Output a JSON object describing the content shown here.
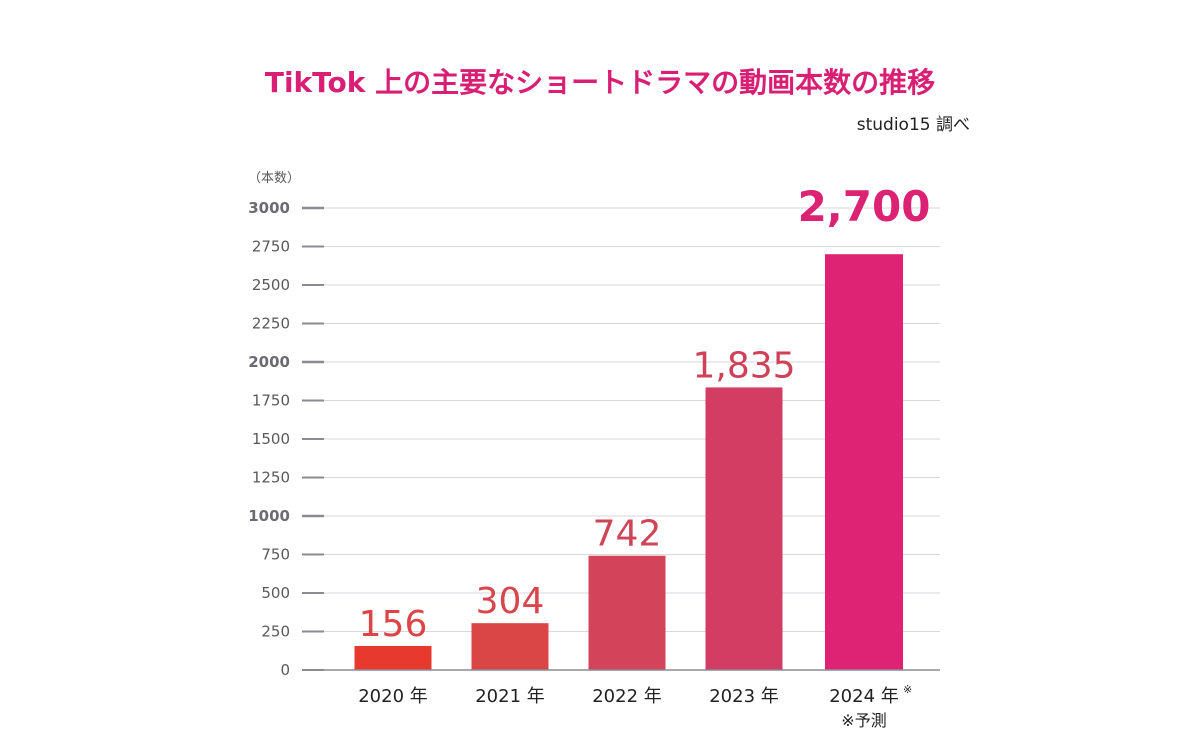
{
  "chart_data": {
    "type": "bar",
    "title": "TikTok 上の主要なショートドラマの動画本数の推移",
    "source": "studio15 調べ",
    "ylabel": "（本数）",
    "xlabel": "",
    "ylim": [
      0,
      3000
    ],
    "yticks": [
      0,
      250,
      500,
      750,
      1000,
      1250,
      1500,
      1750,
      2000,
      2250,
      2500,
      2750,
      3000
    ],
    "bold_ticks": [
      1000,
      2000,
      3000
    ],
    "categories": [
      "2020 年",
      "2021 年",
      "2022 年",
      "2023 年",
      "2024 年"
    ],
    "category_marks": [
      "",
      "",
      "",
      "",
      "※"
    ],
    "values": [
      156,
      304,
      742,
      1835,
      2700
    ],
    "value_labels": [
      "156",
      "304",
      "742",
      "1,835",
      "2,700"
    ],
    "bar_colors": [
      "#e8392f",
      "#da4545",
      "#d3435a",
      "#d33d64",
      "#de2375"
    ],
    "label_colors": [
      "#dc4547",
      "#d8464b",
      "#cf4456",
      "#cf4158",
      "#dc2273"
    ],
    "highlight_index": 4,
    "footnote": "※予測",
    "grid": true
  },
  "colors": {
    "title": "#d81f74",
    "grid": "#d9d6df",
    "axis": "#8a8a93",
    "tick_text": "#58595b",
    "tick_text_bold": "#6b6b73",
    "category_text": "#222222"
  }
}
